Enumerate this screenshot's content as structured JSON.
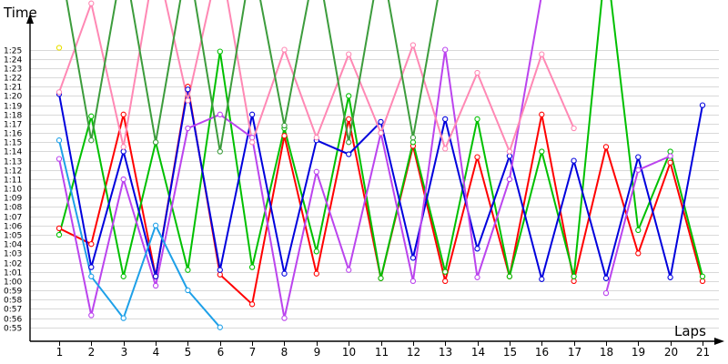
{
  "chart_data": {
    "type": "line",
    "title": "",
    "ylabel": "Time",
    "xlabel": "Laps",
    "grid": true,
    "legend": "none",
    "categories": [
      "1",
      "2",
      "3",
      "4",
      "5",
      "6",
      "7",
      "8",
      "9",
      "10",
      "11",
      "12",
      "13",
      "14",
      "15",
      "16",
      "17",
      "18",
      "19",
      "20",
      "21"
    ],
    "y_ticks": [
      "0:55",
      "0:56",
      "0:57",
      "0:58",
      "0:59",
      "1:00",
      "1:01",
      "1:02",
      "1:03",
      "1:04",
      "1:05",
      "1:06",
      "1:07",
      "1:08",
      "1:09",
      "1:10",
      "1:11",
      "1:12",
      "1:13",
      "1:14",
      "1:15",
      "1:16",
      "1:17",
      "1:18",
      "1:19",
      "1:20",
      "1:21",
      "1:22",
      "1:23",
      "1:24",
      "1:25"
    ],
    "y_tick_seconds": [
      55,
      56,
      57,
      58,
      59,
      60,
      61,
      62,
      63,
      64,
      65,
      66,
      67,
      68,
      69,
      70,
      71,
      72,
      73,
      74,
      75,
      76,
      77,
      78,
      79,
      80,
      81,
      82,
      83,
      84,
      85
    ],
    "y_range_seconds": [
      53.5,
      88.2
    ],
    "series": [
      {
        "color": "#ff0000",
        "values": [
          65.7,
          64,
          78,
          60.5,
          81,
          60.7,
          57.5,
          75.7,
          60.8,
          77.5,
          60.3,
          74.6,
          60,
          73.4,
          60.5,
          78,
          60,
          74.5,
          63,
          72.8,
          60
        ]
      },
      {
        "color": "#00c000",
        "values": [
          65,
          77.8,
          60.5,
          75,
          61.2,
          84.8,
          61.5,
          76.5,
          63.2,
          80,
          60.3,
          75,
          61,
          77.5,
          60.5,
          74,
          60.5,
          95,
          65.5,
          74,
          60.5
        ]
      },
      {
        "color": "#0000dd",
        "values": [
          80.2,
          61.5,
          74,
          60.5,
          80.7,
          61.2,
          78,
          60.8,
          75.2,
          73.7,
          77.2,
          62.5,
          77.5,
          63.5,
          73.5,
          60.2,
          73,
          60.3,
          73.4,
          60.4,
          79
        ]
      },
      {
        "color": "#bb44ee",
        "values": [
          73.2,
          56.3,
          71,
          59.5,
          76.5,
          78,
          75.5,
          56,
          71.8,
          61.2,
          76,
          60,
          85,
          60.4,
          71,
          91,
          null,
          58.7,
          72,
          73.5,
          null
        ]
      },
      {
        "color": "#1ea0e8",
        "values": [
          75.2,
          60.5,
          56,
          66,
          59,
          55,
          null,
          null,
          null,
          null,
          null,
          null,
          null,
          null,
          null,
          null,
          null,
          null,
          null,
          null,
          null
        ]
      },
      {
        "color": "#ff88b4",
        "values": [
          80.4,
          90,
          74.5,
          95,
          79.5,
          95,
          75,
          85,
          75.5,
          84.5,
          76,
          85.5,
          74.3,
          82.5,
          74,
          84.5,
          76.5,
          null,
          null,
          null,
          null
        ]
      },
      {
        "color": "#3c9c3c",
        "values": [
          95,
          75.2,
          95,
          75,
          95,
          74,
          95,
          76.8,
          95,
          75,
          95,
          75.5,
          95,
          null,
          null,
          null,
          null,
          null,
          null,
          null,
          null
        ]
      },
      {
        "color": "#e8e000",
        "values": [
          85.2,
          null,
          null,
          null,
          null,
          null,
          null,
          null,
          null,
          null,
          null,
          null,
          null,
          null,
          null,
          null,
          null,
          null,
          null,
          null,
          null
        ]
      }
    ]
  }
}
